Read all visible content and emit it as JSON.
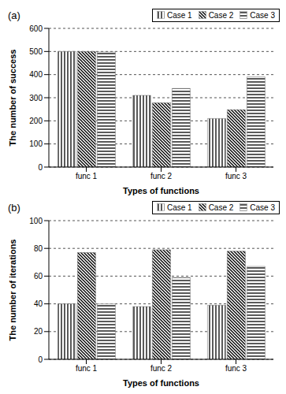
{
  "chart_data": [
    {
      "type": "bar",
      "title": "(a)",
      "x_label": "Types of functions",
      "y_label": "The number of success",
      "categories": [
        "func 1",
        "func 2",
        "func 3"
      ],
      "series": [
        {
          "name": "Case 1",
          "color": "#000000",
          "values": [
            500,
            310,
            210
          ]
        },
        {
          "name": "Case 2",
          "color": "#000000",
          "values": [
            500,
            278,
            248
          ]
        },
        {
          "name": "Case 3",
          "color": "#000000",
          "values": [
            498,
            340,
            390
          ]
        }
      ],
      "ylim": [
        0,
        600
      ],
      "yticks": [
        0,
        100,
        200,
        300,
        400,
        500,
        600
      ],
      "grid": true,
      "legend": "upper right"
    },
    {
      "type": "bar",
      "title": "(b)",
      "x_label": "Types of functions",
      "y_label": "The number of iterations",
      "categories": [
        "func 1",
        "func 2",
        "func 3"
      ],
      "series": [
        {
          "name": "Case 1",
          "color": "#000000",
          "values": [
            40,
            38,
            39
          ]
        },
        {
          "name": "Case 2",
          "color": "#000000",
          "values": [
            77,
            79,
            78
          ]
        },
        {
          "name": "Case 3",
          "color": "#000000",
          "values": [
            40,
            59,
            67
          ]
        }
      ],
      "ylim": [
        0,
        100
      ],
      "yticks": [
        0,
        20,
        40,
        60,
        80,
        100
      ],
      "grid": true,
      "legend": "upper right"
    }
  ]
}
